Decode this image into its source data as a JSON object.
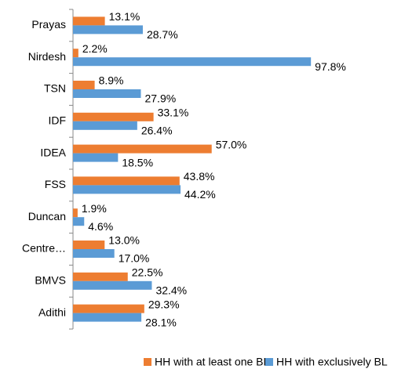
{
  "chart_data": {
    "type": "bar",
    "orientation": "horizontal",
    "categories": [
      "Prayas",
      "Nirdesh",
      "TSN",
      "IDF",
      "IDEA",
      "FSS",
      "Duncan",
      "Centre…",
      "BMVS",
      "Adithi"
    ],
    "xlim": [
      0,
      100
    ],
    "series": [
      {
        "name": "HH with at least one BL",
        "color": "#ed7d31",
        "values": [
          13.1,
          2.2,
          8.9,
          33.1,
          57.0,
          43.8,
          1.9,
          13.0,
          22.5,
          29.3
        ],
        "value_labels": [
          "13.1%",
          "2.2%",
          "8.9%",
          "33.1%",
          "57.0%",
          "43.8%",
          "1.9%",
          "13.0%",
          "22.5%",
          "29.3%"
        ]
      },
      {
        "name": "HH with exclusively BL",
        "color": "#5b9bd5",
        "values": [
          28.7,
          97.8,
          27.9,
          26.4,
          18.5,
          44.2,
          4.6,
          17.0,
          32.4,
          28.1
        ],
        "value_labels": [
          "28.7%",
          "97.8%",
          "27.9%",
          "26.4%",
          "18.5%",
          "44.2%",
          "4.6%",
          "17.0%",
          "32.4%",
          "28.1%"
        ]
      }
    ],
    "legend": "bottom"
  }
}
